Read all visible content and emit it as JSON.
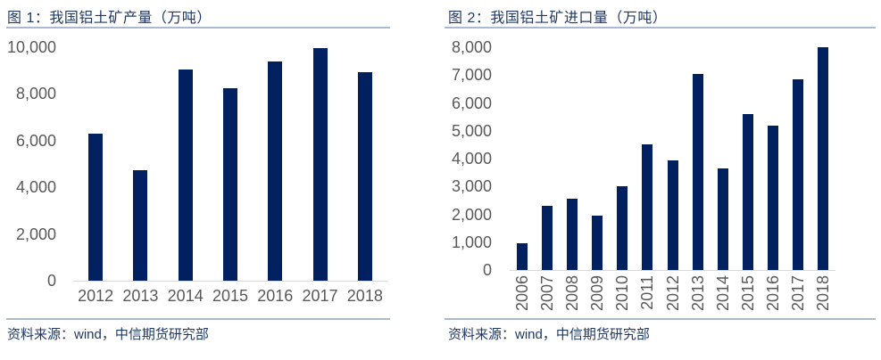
{
  "colors": {
    "background": "#ffffff",
    "bar": "#002060",
    "heading_text": "#1f3864",
    "divider": "#aab8d2",
    "tick_text": "#595959",
    "axis_line": "#d9d9d9"
  },
  "chart_data": [
    {
      "type": "bar",
      "title": "图 1：我国铝土矿产量（万吨）",
      "categories": [
        "2012",
        "2013",
        "2014",
        "2015",
        "2016",
        "2017",
        "2018"
      ],
      "values": [
        6300,
        4750,
        9050,
        8250,
        9400,
        9950,
        8950
      ],
      "xlabel": "",
      "ylabel": "",
      "ylim": [
        0,
        10000
      ],
      "ytick_values": [
        0,
        2000,
        4000,
        6000,
        8000,
        10000
      ],
      "ytick_labels": [
        "0",
        "2,000",
        "4,000",
        "6,000",
        "8,000",
        "10,000"
      ],
      "grid": false,
      "legend": "none",
      "bar_color": "#002060",
      "x_tick_rotation": 0,
      "source": "资料来源：wind，中信期货研究部"
    },
    {
      "type": "bar",
      "title": "图 2：我国铝土矿进口量（万吨）",
      "categories": [
        "2006",
        "2007",
        "2008",
        "2009",
        "2010",
        "2011",
        "2012",
        "2013",
        "2014",
        "2015",
        "2016",
        "2017",
        "2018"
      ],
      "values": [
        950,
        2300,
        2550,
        1950,
        3000,
        4500,
        3950,
        7050,
        3650,
        5600,
        5200,
        6850,
        8000
      ],
      "xlabel": "",
      "ylabel": "",
      "ylim": [
        0,
        8000
      ],
      "ytick_values": [
        0,
        1000,
        2000,
        3000,
        4000,
        5000,
        6000,
        7000,
        8000
      ],
      "ytick_labels": [
        "0",
        "1,000",
        "2,000",
        "3,000",
        "4,000",
        "5,000",
        "6,000",
        "7,000",
        "8,000"
      ],
      "grid": false,
      "legend": "none",
      "bar_color": "#002060",
      "x_tick_rotation": 90,
      "source": "资料来源：wind，中信期货研究部"
    }
  ]
}
